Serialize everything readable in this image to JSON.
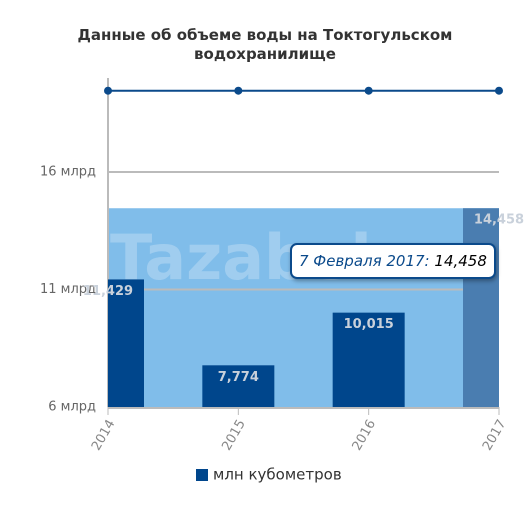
{
  "chart_data": {
    "type": "bar",
    "title": "Данные об объеме воды на Токтогульском водохранилище",
    "categories": [
      "2014",
      "2015",
      "2016",
      "2017"
    ],
    "series": [
      {
        "name": "млн кубометров",
        "color": "#00468c",
        "colors": [
          "#00468c",
          "#00468c",
          "#00468c",
          "#4a7db0"
        ],
        "values": [
          11429,
          7774,
          10015,
          14458
        ],
        "value_labels": [
          "11,429",
          "7,774",
          "10,015",
          "14,458"
        ]
      },
      {
        "type": "line",
        "color": "#0b4a8b",
        "values": [
          19460,
          19460,
          19460,
          19460
        ]
      }
    ],
    "ylim": [
      6000,
      20000
    ],
    "yticks": [
      {
        "value": 6000,
        "label": "6 млрд"
      },
      {
        "value": 11000,
        "label": "11 млрд"
      },
      {
        "value": 16000,
        "label": "16 млрд"
      }
    ],
    "grid": true,
    "legend": "bottom",
    "watermark": "Tazabek",
    "tooltip": {
      "date": "7 Февраля 2017:",
      "value": "14,458"
    }
  }
}
